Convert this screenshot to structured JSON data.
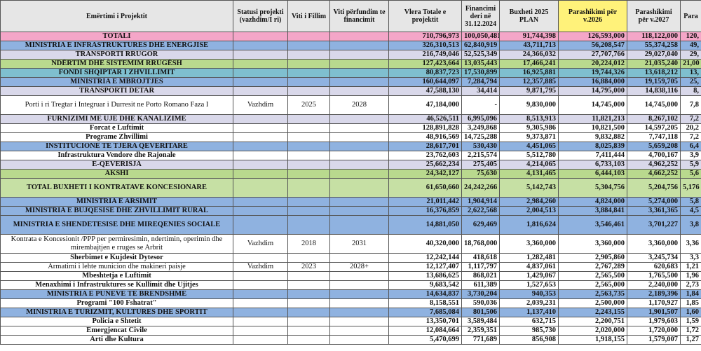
{
  "header": {
    "columns": [
      "Emërtimi i Projektit",
      "Statusi projekti (vazhdim/I ri)",
      "Viti i Fillim",
      "Viti përfundim te financimit",
      "Vlera Totale e projektit",
      "Financimi deri në 31.12.2024",
      "Buxheti 2025 PLAN",
      "Parashikimi për v.2026",
      "Parashikimi për v.2027",
      "Para"
    ]
  },
  "table": {
    "rows": [
      {
        "name": "TOTALI",
        "color": "#f4a6c8",
        "values": [
          "710,796,973",
          "100,050,481",
          "91,744,398",
          "126,593,000",
          "118,122,000",
          "120,"
        ]
      },
      {
        "name": "MINISTRIA E INFRASTRUKTURES DHE ENERGJISE",
        "color": "#8fb2e0",
        "values": [
          "326,310,513",
          "62,840,919",
          "43,711,713",
          "56,208,547",
          "55,374,258",
          "49,"
        ]
      },
      {
        "name": "TRANSPORTI RRUGOR",
        "color": "#d9d8ea",
        "values": [
          "216,749,046",
          "52,525,349",
          "24,366,032",
          "27,707,766",
          "29,027,040",
          "29,"
        ]
      },
      {
        "name": "NDËRTIM DHE SISTEMIM RRUGËSH",
        "color": "#b9d98e",
        "values": [
          "127,423,664",
          "13,035,443",
          "17,466,241",
          "20,224,012",
          "21,035,240",
          "21,00"
        ]
      },
      {
        "name": "FONDI SHQIPTAR I ZHVILLIMIT",
        "color": "#7fbfcf",
        "values": [
          "80,837,723",
          "17,530,899",
          "16,925,881",
          "19,744,326",
          "13,618,212",
          "13,"
        ]
      },
      {
        "name": "MINISTRIA E MBROJTJES",
        "color": "#8fb2e0",
        "values": [
          "160,644,097",
          "7,284,794",
          "12,357,885",
          "16,884,000",
          "19,159,705",
          "25,"
        ]
      },
      {
        "name": "TRANSPORTI DETAR",
        "color": "#d9d8ea",
        "values": [
          "47,588,130",
          "34,414",
          "9,871,795",
          "14,795,000",
          "14,838,116",
          "8,"
        ]
      },
      {
        "name": "Porti i ri Tregtar i Integruar i Durresit ne Porto Romano Faza I",
        "status": "Vazhdim",
        "start": "2025",
        "end": "2028",
        "tall": true,
        "color": "#ffffff",
        "values": [
          "47,184,000",
          "-",
          "9,830,000",
          "14,745,000",
          "14,745,000",
          "7,8"
        ]
      },
      {
        "name": "FURNIZIMI ME UJE DHE KANALIZIME",
        "color": "#d9d8ea",
        "values": [
          "46,526,511",
          "6,995,096",
          "8,513,913",
          "11,821,213",
          "8,267,102",
          "7,2"
        ]
      },
      {
        "name": "Forcat e Luftimit",
        "color": "#ffffff",
        "values": [
          "128,891,828",
          "3,249,868",
          "9,305,986",
          "10,821,500",
          "14,597,205",
          "20,2"
        ]
      },
      {
        "name": "Programe Zhvillimi",
        "color": "#ffffff",
        "values": [
          "48,916,569",
          "14,725,288",
          "9,373,871",
          "9,832,882",
          "7,747,118",
          "7,2"
        ]
      },
      {
        "name": "INSTITUCIONE TE TJERA QEVERITARE",
        "color": "#8fb2e0",
        "values": [
          "28,617,701",
          "530,430",
          "4,451,065",
          "8,025,839",
          "5,659,208",
          "6,4"
        ]
      },
      {
        "name": "Infrastruktura Vendore dhe Rajonale",
        "color": "#ffffff",
        "values": [
          "23,762,603",
          "2,215,574",
          "5,512,780",
          "7,411,444",
          "4,700,167",
          "3,9"
        ]
      },
      {
        "name": "E-QEVERISJA",
        "color": "#d9d8ea",
        "values": [
          "25,662,234",
          "275,405",
          "4,214,065",
          "6,733,103",
          "4,962,252",
          "5,9"
        ]
      },
      {
        "name": "AKSHI",
        "color": "#b9d98e",
        "values": [
          "24,342,127",
          "75,630",
          "4,131,465",
          "6,444,103",
          "4,662,252",
          "5,6"
        ]
      },
      {
        "name": "TOTAL BUXHETI I KONTRATAVE KONCESIONARE",
        "tall": true,
        "color": "#c6e0a4",
        "values": [
          "61,650,660",
          "24,242,266",
          "5,142,743",
          "5,304,756",
          "5,204,756",
          "5,176"
        ]
      },
      {
        "name": "MINISTRIA E ARSIMIT",
        "color": "#8fb2e0",
        "values": [
          "21,011,442",
          "1,904,914",
          "2,984,260",
          "4,824,000",
          "5,274,000",
          "5,8"
        ]
      },
      {
        "name": "MINISTRIA E BUJQESISE DHE ZHVILLIMIT RURAL",
        "color": "#8fb2e0",
        "values": [
          "16,376,859",
          "2,622,568",
          "2,004,513",
          "3,884,841",
          "3,361,365",
          "4,5"
        ]
      },
      {
        "name": "MINISTRIA E SHENDETESISE DHE MIREQENIES SOCIALE",
        "tall": true,
        "color": "#8fb2e0",
        "values": [
          "14,881,050",
          "629,469",
          "1,816,624",
          "3,546,461",
          "3,701,227",
          "3,8"
        ]
      },
      {
        "name": "Kontrata e Koncesionit /PPP per permiresimin, ndertimin, operimin dhe mirembajtjen e rruges se Arbrit",
        "status": "Vazhdim",
        "start": "2018",
        "end": "2031",
        "tall": true,
        "color": "#ffffff",
        "values": [
          "40,320,000",
          "18,768,000",
          "3,360,000",
          "3,360,000",
          "3,360,000",
          "3,36"
        ]
      },
      {
        "name": "Sherbimet e Kujdesit Dytesor",
        "color": "#ffffff",
        "values": [
          "12,242,144",
          "418,618",
          "1,282,481",
          "2,905,860",
          "3,245,734",
          "3,3"
        ]
      },
      {
        "name": "Armatimi i lehte municion dhe makineri paisje",
        "status": "Vazhdim",
        "start": "2023",
        "end": "2028+",
        "color": "#ffffff",
        "values": [
          "12,127,407",
          "1,117,797",
          "4,837,061",
          "2,767,289",
          "620,683",
          "1,21"
        ]
      },
      {
        "name": "Mbeshtetja e Luftimit",
        "color": "#ffffff",
        "values": [
          "13,686,625",
          "868,021",
          "1,429,067",
          "2,565,500",
          "1,765,500",
          "1,96"
        ]
      },
      {
        "name": "Menaxhimi i Infrastruktures se Kullimit dhe Ujitjes",
        "color": "#ffffff",
        "values": [
          "9,683,542",
          "611,389",
          "1,527,653",
          "2,565,000",
          "2,240,000",
          "2,73"
        ]
      },
      {
        "name": "MINISTRIA E PUNEVE TE BRENDSHME",
        "color": "#8fb2e0",
        "values": [
          "14,634,837",
          "3,730,204",
          "940,353",
          "2,563,735",
          "2,189,396",
          "1,84"
        ]
      },
      {
        "name": "Programi \"100 Fshatrat\"",
        "color": "#ffffff",
        "values": [
          "8,158,551",
          "590,036",
          "2,039,231",
          "2,500,000",
          "1,170,927",
          "1,85"
        ]
      },
      {
        "name": "MINISTRIA E TURIZMIT, KULTURES DHE SPORTIT",
        "color": "#8fb2e0",
        "values": [
          "7,685,084",
          "801,506",
          "1,137,410",
          "2,243,155",
          "1,901,507",
          "1,60"
        ]
      },
      {
        "name": "Policia e Shtetit",
        "color": "#ffffff",
        "values": [
          "13,350,701",
          "3,589,484",
          "632,715",
          "2,200,751",
          "1,979,603",
          "1,59"
        ]
      },
      {
        "name": "Emergjencat Civile",
        "color": "#ffffff",
        "values": [
          "12,084,664",
          "2,359,351",
          "985,730",
          "2,020,000",
          "1,720,000",
          "1,72"
        ]
      },
      {
        "name": "Arti dhe Kultura",
        "color": "#ffffff",
        "values": [
          "5,470,699",
          "771,689",
          "856,908",
          "1,918,155",
          "1,579,007",
          "1,27"
        ]
      }
    ]
  }
}
